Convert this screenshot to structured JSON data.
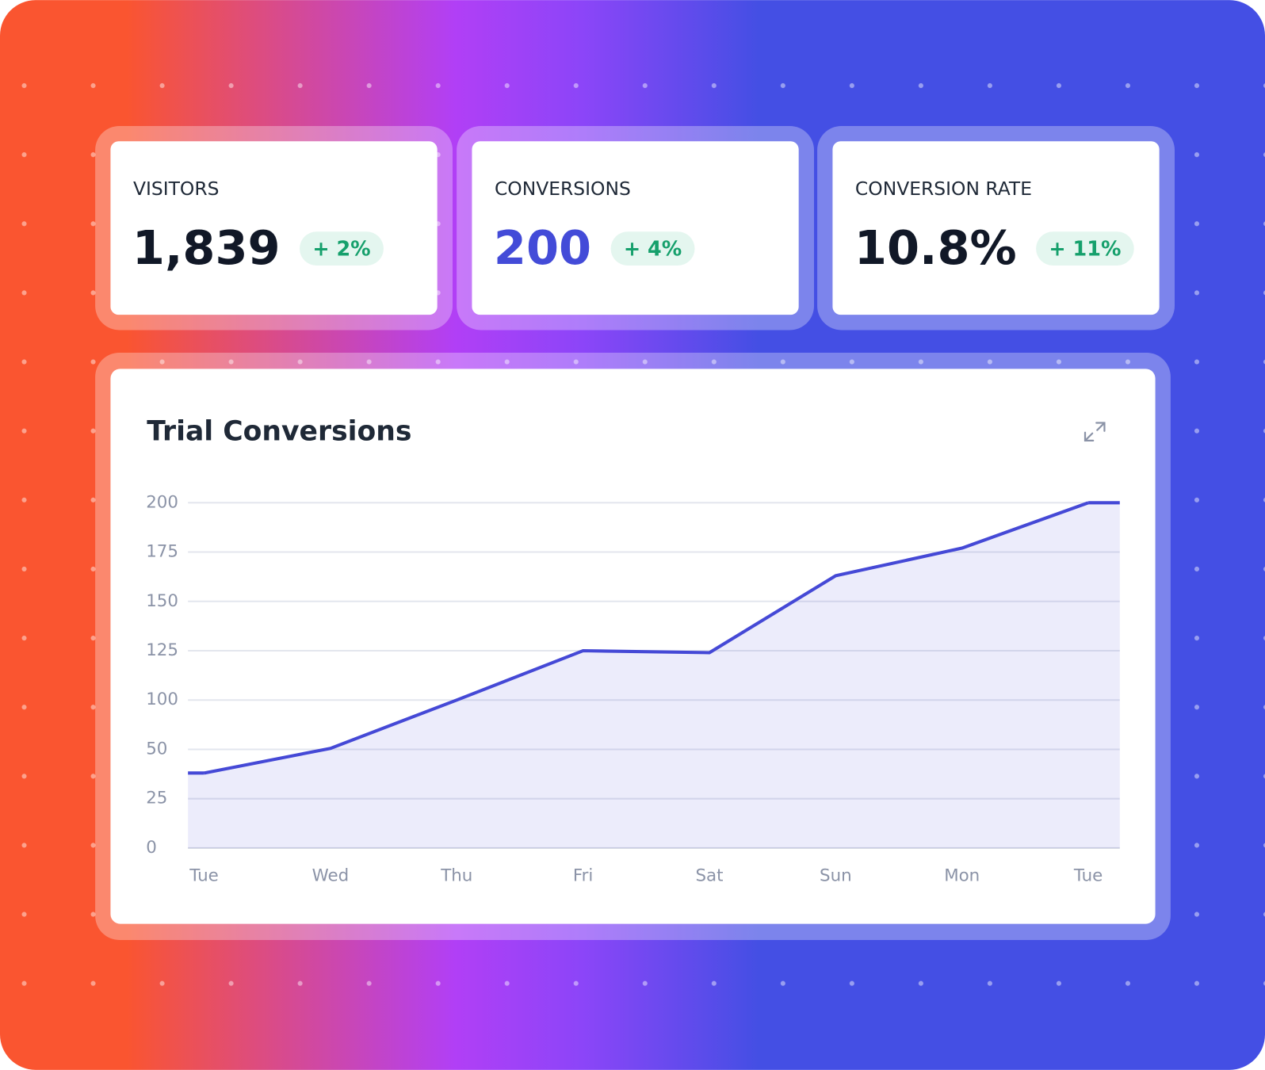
{
  "kpis": [
    {
      "label": "VISITORS",
      "value": "1,839",
      "change": "+ 2%"
    },
    {
      "label": "CONVERSIONS",
      "value": "200",
      "change": "+ 4%"
    },
    {
      "label": "CONVERSION RATE",
      "value": "10.8%",
      "change": "+ 11%"
    }
  ],
  "chart_data": {
    "type": "area",
    "title": "Trial Conversions",
    "categories": [
      "Tue",
      "Wed",
      "Thu",
      "Fri",
      "Sat",
      "Sun",
      "Mon",
      "Tue"
    ],
    "values": [
      38,
      51,
      100,
      125,
      124,
      163,
      177,
      200
    ],
    "color": "#4549d6",
    "ylim": [
      0,
      200
    ],
    "yticks": [
      0,
      25,
      50,
      100,
      125,
      150,
      175,
      200
    ],
    "grid": true
  }
}
